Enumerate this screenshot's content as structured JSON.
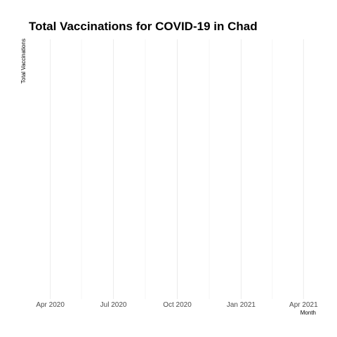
{
  "chart_data": {
    "type": "line",
    "title": "Total Vaccinations for COVID-19 in Chad",
    "xlabel": "Month",
    "ylabel": "Total Vaccinations",
    "x_axis": {
      "scale": "date",
      "range": [
        "2020-03-01",
        "2021-05-01"
      ],
      "ticks": [
        {
          "value": "2020-04-01",
          "label": "Apr 2020"
        },
        {
          "value": "2020-07-01",
          "label": "Jul 2020"
        },
        {
          "value": "2020-10-01",
          "label": "Oct 2020"
        },
        {
          "value": "2021-01-01",
          "label": "Jan 2021"
        },
        {
          "value": "2021-04-01",
          "label": "Apr 2021"
        }
      ],
      "minor_ticks": [
        "2020-05-16",
        "2020-08-16",
        "2020-11-16",
        "2021-02-15"
      ]
    },
    "series": [
      {
        "x": [],
        "y": []
      }
    ],
    "grid": true,
    "colors": {
      "grid_major": "#ebebeb",
      "grid_minor": "#f3f3f3",
      "tick_label": "#4d4d4d",
      "text": "#000000"
    }
  }
}
